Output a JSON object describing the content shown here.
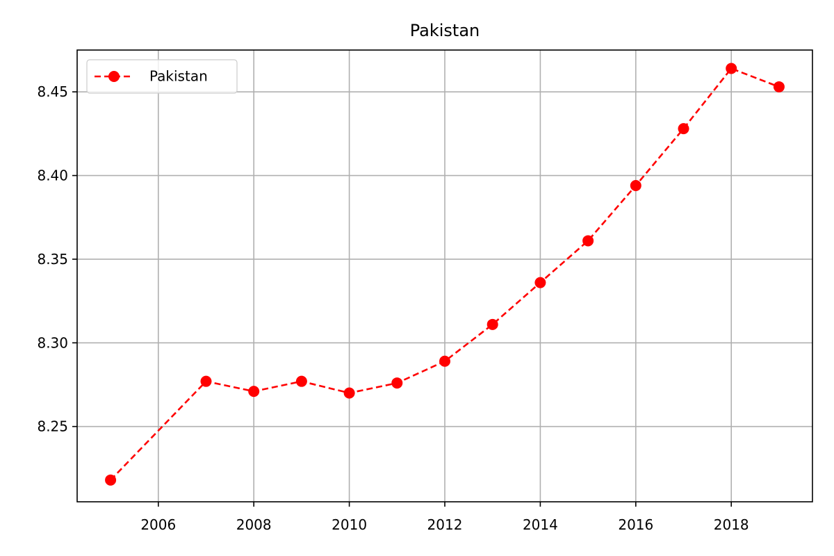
{
  "chart_data": {
    "type": "line",
    "title": "Pakistan",
    "xlabel": "",
    "ylabel": "",
    "x": [
      2005,
      2007,
      2008,
      2009,
      2010,
      2011,
      2012,
      2013,
      2014,
      2015,
      2016,
      2017,
      2018,
      2019
    ],
    "series": [
      {
        "name": "Pakistan",
        "values": [
          8.218,
          8.277,
          8.271,
          8.277,
          8.27,
          8.276,
          8.289,
          8.311,
          8.336,
          8.361,
          8.394,
          8.428,
          8.464,
          8.453
        ],
        "color": "#ff0000",
        "line_style": "dashed",
        "marker": "circle"
      }
    ],
    "xlim": [
      2004.3,
      2019.7
    ],
    "ylim": [
      8.205,
      8.475
    ],
    "x_ticks": [
      2006,
      2008,
      2010,
      2012,
      2014,
      2016,
      2018
    ],
    "x_tick_labels": [
      "2006",
      "2008",
      "2010",
      "2012",
      "2014",
      "2016",
      "2018"
    ],
    "y_ticks": [
      8.25,
      8.3,
      8.35,
      8.4,
      8.45
    ],
    "y_tick_labels": [
      "8.25",
      "8.30",
      "8.35",
      "8.40",
      "8.45"
    ],
    "grid": true,
    "legend_position": "top-left"
  }
}
